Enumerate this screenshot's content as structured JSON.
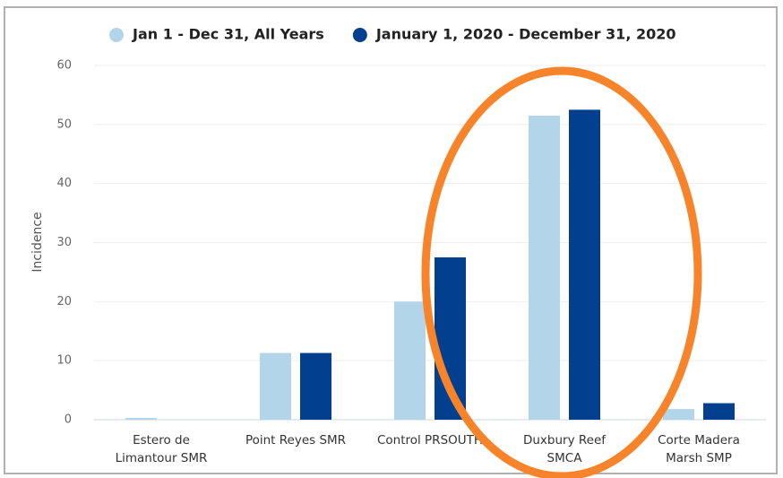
{
  "chart_data": {
    "type": "bar",
    "y_label": "Incidence",
    "categories": [
      [
        "Estero de",
        "Limantour SMR"
      ],
      [
        "Point Reyes SMR"
      ],
      [
        "Control PRSOUTH"
      ],
      [
        "Duxbury Reef",
        "SMCA"
      ],
      [
        "Corte Madera",
        "Marsh SMP"
      ]
    ],
    "series": [
      {
        "name": "Jan 1 - Dec 31, All Years",
        "color": "#b3d5ea",
        "values": [
          0.3,
          11.3,
          20,
          51.5,
          1.8
        ]
      },
      {
        "name": "January 1, 2020 - December 31, 2020",
        "color": "#02408f",
        "values": [
          0,
          11.3,
          27.5,
          52.5,
          2.8
        ]
      }
    ],
    "ylim": [
      0,
      60
    ],
    "yticks": [
      0,
      10,
      20,
      30,
      40,
      50,
      60
    ],
    "grid": true,
    "legend": "top"
  }
}
